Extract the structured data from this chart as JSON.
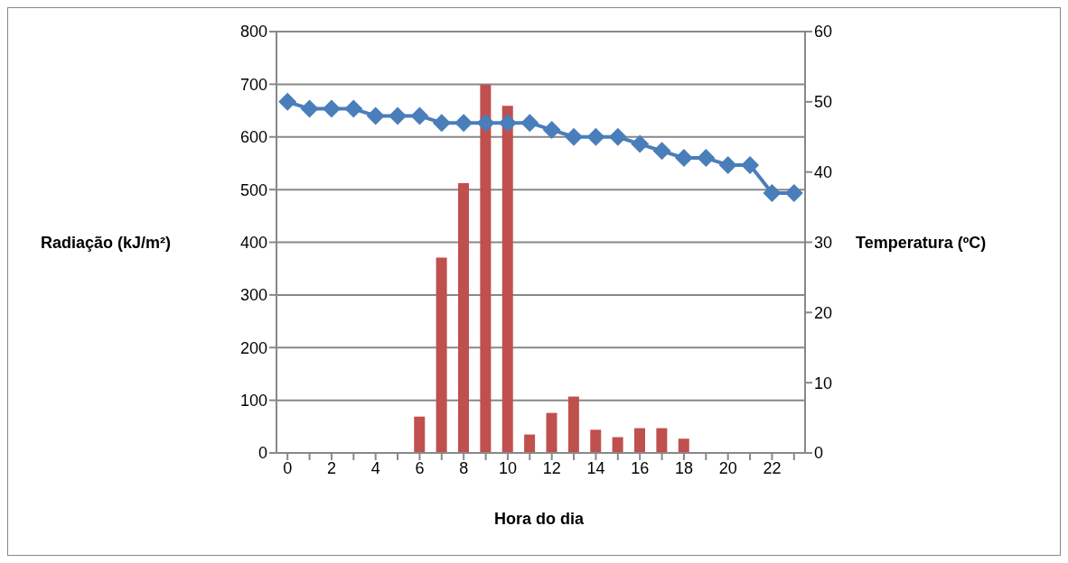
{
  "chart_data": {
    "type": "bar",
    "xlabel": "Hora do dia",
    "ylabel": "Radiação (kJ/m²)",
    "y2label": "Temperatura (ºC)",
    "categories": [
      "0",
      null,
      "2",
      null,
      "4",
      null,
      "6",
      null,
      "8",
      null,
      "10",
      null,
      "12",
      null,
      "14",
      null,
      "16",
      null,
      "18",
      null,
      "20",
      null,
      "22",
      null
    ],
    "series": [
      {
        "color": "#c0504d",
        "values": [
          0,
          0,
          0,
          0,
          0,
          0,
          69,
          371,
          512,
          699,
          659,
          35,
          76,
          107,
          44,
          30,
          47,
          47,
          27,
          0,
          0,
          0,
          0,
          0
        ]
      },
      {
        "type": "line",
        "axis": "y2",
        "color": "#4a7ebb",
        "marker": "diamond",
        "values": [
          50,
          49,
          49,
          49,
          48,
          48,
          48,
          47,
          47,
          47,
          47,
          47,
          46,
          45,
          45,
          45,
          44,
          43,
          42,
          42,
          41,
          41,
          37,
          37
        ]
      }
    ],
    "ylim": [
      0,
      800
    ],
    "yticks": [
      0,
      100,
      200,
      300,
      400,
      500,
      600,
      700,
      800
    ],
    "y2lim": [
      0,
      60
    ],
    "y2ticks": [
      0,
      10,
      20,
      30,
      40,
      50,
      60
    ],
    "grid": "y"
  }
}
